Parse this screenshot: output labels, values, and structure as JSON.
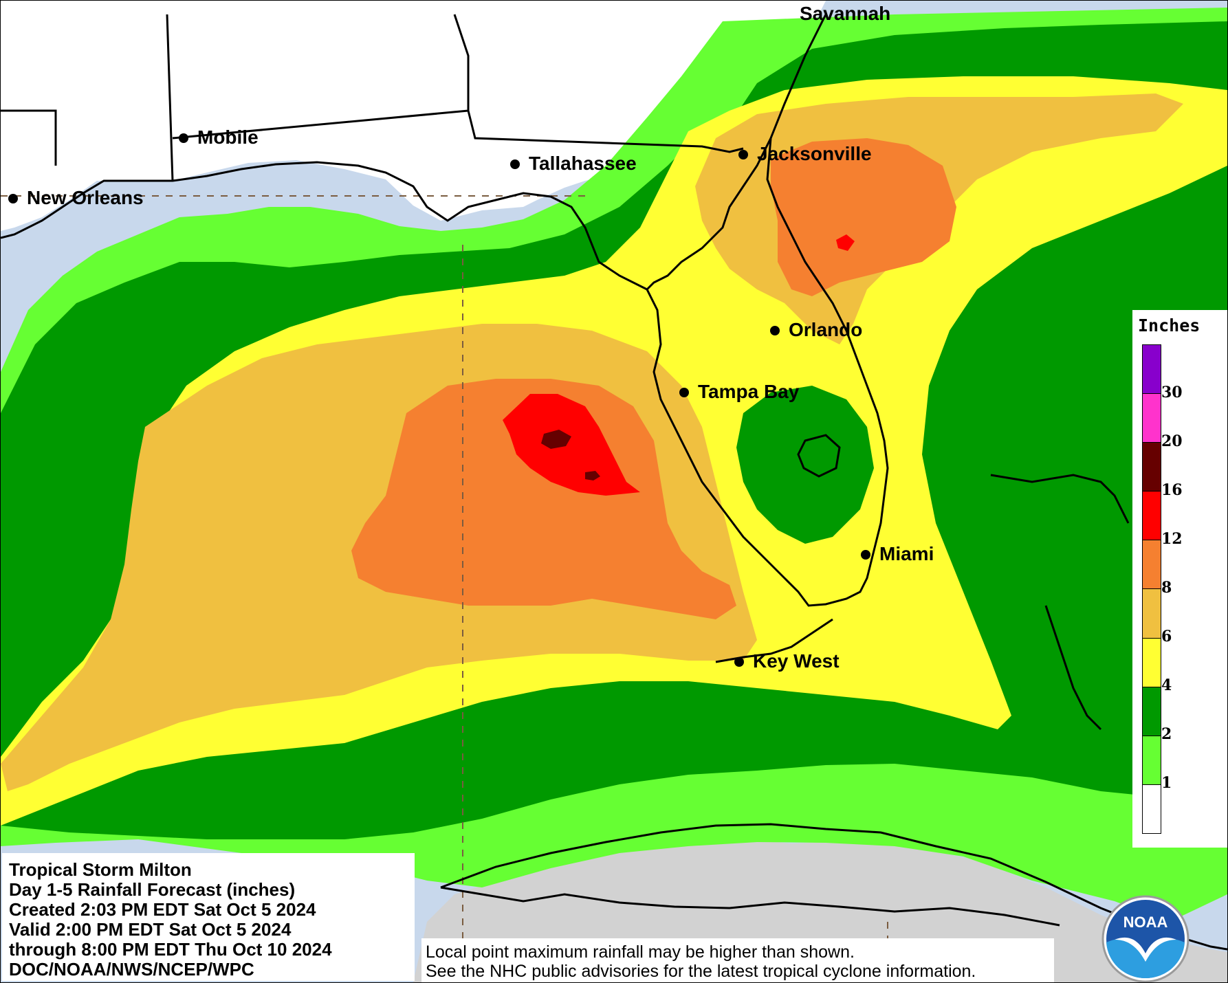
{
  "map": {
    "cities": [
      {
        "name": "Savannah"
      },
      {
        "name": "Mobile"
      },
      {
        "name": "Tallahassee"
      },
      {
        "name": "New Orleans"
      },
      {
        "name": "Jacksonville"
      },
      {
        "name": "Orlando"
      },
      {
        "name": "Tampa Bay"
      },
      {
        "name": "Miami"
      },
      {
        "name": "Key West"
      }
    ],
    "colors": {
      "ocean": "#c8d8ec",
      "land": "#ffffff",
      "no_data_land": "#d2d2d2",
      "r1": "#66ff33",
      "r2": "#009900",
      "r4": "#ffff33",
      "r6": "#f0c040",
      "r8": "#f58030",
      "r12": "#ff0000",
      "r16": "#660000",
      "r20": "#ff33cc",
      "r30": "#8800cc"
    }
  },
  "legend": {
    "title": "Inches",
    "swatches": [
      {
        "color": "#8800cc"
      },
      {
        "color": "#ff33cc"
      },
      {
        "color": "#660000"
      },
      {
        "color": "#ff0000"
      },
      {
        "color": "#f58030"
      },
      {
        "color": "#f0c040"
      },
      {
        "color": "#ffff33"
      },
      {
        "color": "#009900"
      },
      {
        "color": "#66ff33"
      },
      {
        "color": "#ffffff"
      }
    ],
    "ticks": [
      "30",
      "20",
      "16",
      "12",
      "8",
      "6",
      "4",
      "2",
      "1"
    ]
  },
  "info": {
    "lines": [
      "Tropical Storm Milton",
      "Day 1-5 Rainfall Forecast (inches)",
      "Created 2:03 PM EDT Sat Oct 5 2024",
      "Valid 2:00 PM EDT Sat Oct 5 2024",
      "through 8:00 PM EDT Thu Oct 10 2024",
      "DOC/NOAA/NWS/NCEP/WPC"
    ]
  },
  "disclaimer": {
    "lines": [
      "Local point maximum rainfall may be higher than shown.",
      "See the NHC public advisories for the latest tropical cyclone information."
    ]
  },
  "logo": {
    "text": "NOAA"
  }
}
